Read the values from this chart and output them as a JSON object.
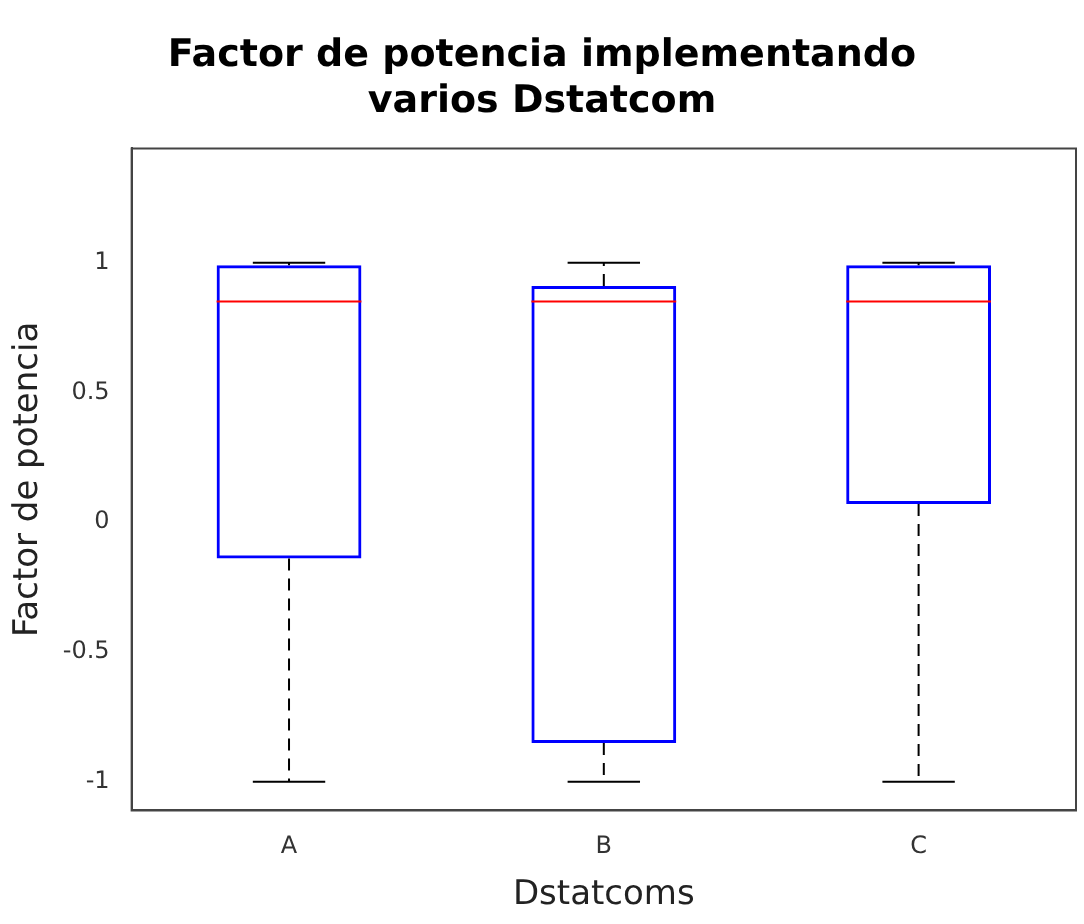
{
  "chart_data": {
    "type": "box",
    "title": "Factor de potencia implementando varios Dstatcom",
    "xlabel": "Dstatcoms",
    "ylabel": "Factor de potencia",
    "categories": [
      "A",
      "B",
      "C"
    ],
    "series": [
      {
        "color": "#0000ff",
        "boxes": [
          {
            "low": -1,
            "q1": -0.14,
            "median": 0.85,
            "q3": 0.99,
            "high": 1
          },
          {
            "low": -1,
            "q1": -0.85,
            "median": 0.85,
            "q3": 0.91,
            "high": 1
          },
          {
            "low": -1,
            "q1": 0.07,
            "median": 0.85,
            "q3": 0.99,
            "high": 1
          }
        ]
      }
    ],
    "ylim": [
      -1.11,
      1.44
    ],
    "yticks": [
      -1,
      -0.5,
      0,
      0.5,
      1
    ]
  }
}
